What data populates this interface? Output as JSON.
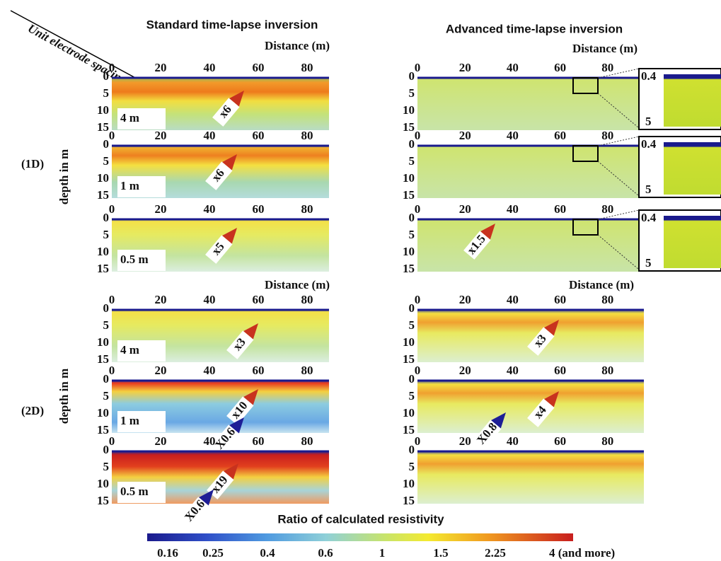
{
  "annotation": "Unit electrode spacing",
  "distance_label": "Distance (m)",
  "rows": [
    {
      "label": "(1D)",
      "axis_label": "depth in m"
    },
    {
      "label": "(2D)",
      "axis_label": "depth in m"
    }
  ],
  "x_ticks": [
    "0",
    "20",
    "40",
    "60",
    "80"
  ],
  "y_ticks": [
    "0",
    "5",
    "10",
    "15"
  ],
  "inset_ticks": [
    "0.4",
    "5"
  ],
  "standard": {
    "title": "Standard time-lapse inversion",
    "panels": [
      {
        "spacing": "4 m",
        "arrows": [
          {
            "label": "x6",
            "color": "#c8321e"
          }
        ]
      },
      {
        "spacing": "1 m",
        "arrows": [
          {
            "label": "x6",
            "color": "#c8321e"
          }
        ]
      },
      {
        "spacing": "0.5 m",
        "arrows": [
          {
            "label": "x5",
            "color": "#c8321e"
          }
        ]
      },
      {
        "spacing": "4 m",
        "arrows": [
          {
            "label": "x3",
            "color": "#c8321e"
          }
        ]
      },
      {
        "spacing": "1 m",
        "arrows": [
          {
            "label": "x10",
            "color": "#c8321e"
          },
          {
            "label": "X0.6",
            "color": "#1e1e96"
          }
        ]
      },
      {
        "spacing": "0.5 m",
        "arrows": [
          {
            "label": "x19",
            "color": "#c8321e"
          },
          {
            "label": "X0.6",
            "color": "#1e1e96"
          }
        ]
      }
    ]
  },
  "advanced": {
    "title": "Advanced time-lapse inversion",
    "panels": [
      {
        "arrows": []
      },
      {
        "arrows": []
      },
      {
        "arrows": [
          {
            "label": "x1.5",
            "color": "#c8321e"
          }
        ]
      },
      {
        "arrows": [
          {
            "label": "x3",
            "color": "#c8321e"
          }
        ]
      },
      {
        "arrows": [
          {
            "label": "x4",
            "color": "#c8321e"
          },
          {
            "label": "X0.8",
            "color": "#1e1e96"
          }
        ]
      },
      {
        "arrows": []
      }
    ]
  },
  "colorbar": {
    "title": "Ratio of calculated resistivity",
    "labels": [
      "0.16",
      "0.25",
      "0.4",
      "0.6",
      "1",
      "1.5",
      "2.25",
      "4 (and more)"
    ]
  }
}
